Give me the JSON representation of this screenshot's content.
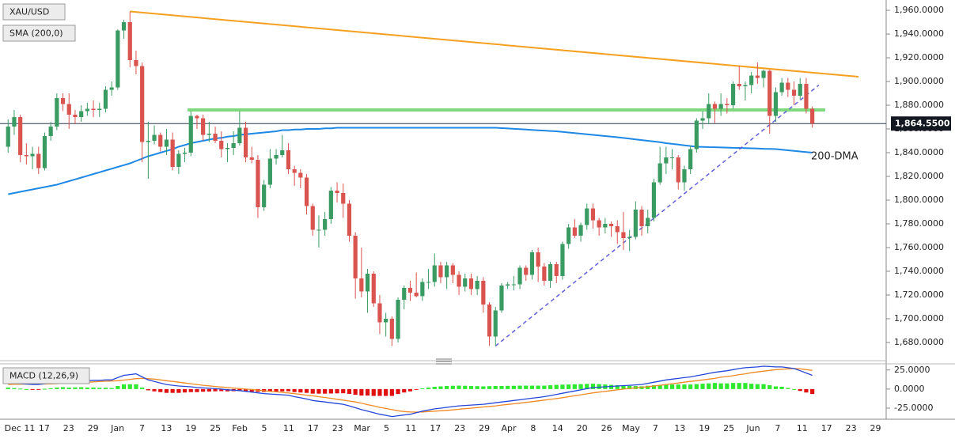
{
  "chart_data": [
    {
      "type": "candlestick",
      "title": "XAU/USD",
      "indicator_label": "SMA (200,0)",
      "up_color": "#3a9b62",
      "down_color": "#d9534f",
      "open": [
        1845,
        1862,
        1870,
        1838,
        1837,
        1839,
        1827,
        1854,
        1862,
        1886,
        1881,
        1872,
        1870,
        1875,
        1877,
        1876,
        1877,
        1893,
        1895,
        1943,
        1950,
        1918,
        1913,
        1849,
        1850,
        1855,
        1845,
        1851,
        1828,
        1839,
        1840,
        1871,
        1869,
        1855,
        1856,
        1850,
        1843,
        1844,
        1848,
        1861,
        1836,
        1834,
        1794,
        1813,
        1835,
        1838,
        1842,
        1826,
        1823,
        1819,
        1795,
        1775,
        1775,
        1784,
        1808,
        1806,
        1797,
        1770,
        1734,
        1723,
        1738,
        1713,
        1697,
        1700,
        1683,
        1716,
        1726,
        1722,
        1719,
        1731,
        1731,
        1745,
        1735,
        1745,
        1737,
        1727,
        1734,
        1725,
        1732,
        1712,
        1685,
        1707,
        1728,
        1729,
        1729,
        1743,
        1737,
        1756,
        1744,
        1732,
        1746,
        1736,
        1763,
        1777,
        1770,
        1779,
        1793,
        1783,
        1777,
        1780,
        1778,
        1773,
        1768,
        1769,
        1792,
        1778,
        1785,
        1815,
        1831,
        1836,
        1836,
        1815,
        1826,
        1843,
        1867,
        1869,
        1881,
        1877,
        1881,
        1880,
        1898,
        1896,
        1897,
        1905,
        1903,
        1909,
        1871,
        1891,
        1899,
        1893,
        1888,
        1898,
        1877
      ],
      "high": [
        1868,
        1876,
        1872,
        1848,
        1845,
        1845,
        1857,
        1866,
        1890,
        1890,
        1890,
        1876,
        1880,
        1882,
        1884,
        1882,
        1896,
        1900,
        1944,
        1952,
        1959,
        1926,
        1916,
        1866,
        1863,
        1857,
        1860,
        1857,
        1842,
        1844,
        1875,
        1872,
        1872,
        1866,
        1862,
        1858,
        1848,
        1858,
        1875,
        1866,
        1845,
        1838,
        1817,
        1843,
        1843,
        1855,
        1848,
        1829,
        1826,
        1822,
        1797,
        1787,
        1790,
        1811,
        1815,
        1814,
        1800,
        1773,
        1760,
        1742,
        1740,
        1720,
        1705,
        1702,
        1718,
        1728,
        1732,
        1739,
        1734,
        1742,
        1755,
        1748,
        1748,
        1747,
        1740,
        1738,
        1738,
        1736,
        1735,
        1714,
        1710,
        1730,
        1731,
        1736,
        1745,
        1745,
        1758,
        1760,
        1747,
        1748,
        1748,
        1765,
        1780,
        1784,
        1781,
        1797,
        1797,
        1785,
        1785,
        1782,
        1783,
        1790,
        1775,
        1799,
        1795,
        1792,
        1818,
        1845,
        1845,
        1843,
        1838,
        1829,
        1846,
        1869,
        1875,
        1890,
        1883,
        1890,
        1886,
        1900,
        1913,
        1900,
        1908,
        1916,
        1910,
        1910,
        1895,
        1903,
        1903,
        1900,
        1903,
        1903,
        1879
      ],
      "low": [
        1840,
        1855,
        1832,
        1830,
        1826,
        1822,
        1825,
        1850,
        1859,
        1875,
        1860,
        1864,
        1866,
        1871,
        1870,
        1870,
        1874,
        1888,
        1893,
        1936,
        1912,
        1906,
        1832,
        1818,
        1847,
        1841,
        1838,
        1825,
        1822,
        1832,
        1837,
        1860,
        1850,
        1849,
        1848,
        1836,
        1832,
        1838,
        1846,
        1832,
        1831,
        1785,
        1791,
        1810,
        1830,
        1836,
        1822,
        1812,
        1810,
        1788,
        1770,
        1760,
        1770,
        1780,
        1798,
        1785,
        1765,
        1717,
        1718,
        1705,
        1710,
        1687,
        1685,
        1677,
        1680,
        1708,
        1715,
        1718,
        1715,
        1725,
        1727,
        1730,
        1725,
        1730,
        1720,
        1723,
        1720,
        1720,
        1705,
        1677,
        1677,
        1705,
        1725,
        1724,
        1725,
        1732,
        1733,
        1731,
        1728,
        1726,
        1730,
        1733,
        1759,
        1768,
        1765,
        1775,
        1776,
        1770,
        1772,
        1769,
        1763,
        1758,
        1757,
        1767,
        1770,
        1772,
        1782,
        1813,
        1822,
        1826,
        1809,
        1808,
        1822,
        1840,
        1860,
        1864,
        1865,
        1871,
        1873,
        1877,
        1893,
        1884,
        1890,
        1898,
        1895,
        1856,
        1866,
        1888,
        1887,
        1880,
        1885,
        1873,
        1861
      ],
      "close": [
        1862,
        1870,
        1838,
        1837,
        1839,
        1827,
        1854,
        1862,
        1886,
        1881,
        1872,
        1870,
        1875,
        1877,
        1876,
        1877,
        1893,
        1895,
        1943,
        1950,
        1918,
        1913,
        1849,
        1850,
        1855,
        1845,
        1851,
        1828,
        1839,
        1840,
        1871,
        1869,
        1855,
        1856,
        1850,
        1843,
        1844,
        1848,
        1861,
        1836,
        1834,
        1794,
        1813,
        1835,
        1838,
        1842,
        1826,
        1823,
        1819,
        1795,
        1775,
        1775,
        1784,
        1808,
        1806,
        1797,
        1770,
        1734,
        1723,
        1738,
        1713,
        1697,
        1700,
        1683,
        1716,
        1726,
        1722,
        1719,
        1731,
        1731,
        1745,
        1735,
        1745,
        1737,
        1727,
        1734,
        1725,
        1732,
        1712,
        1685,
        1707,
        1728,
        1729,
        1729,
        1743,
        1737,
        1756,
        1744,
        1732,
        1746,
        1736,
        1763,
        1777,
        1770,
        1779,
        1793,
        1783,
        1777,
        1780,
        1778,
        1773,
        1768,
        1769,
        1792,
        1778,
        1785,
        1815,
        1831,
        1836,
        1836,
        1815,
        1826,
        1843,
        1867,
        1869,
        1881,
        1877,
        1881,
        1880,
        1898,
        1896,
        1897,
        1905,
        1903,
        1909,
        1871,
        1891,
        1899,
        1893,
        1888,
        1898,
        1877,
        1864.55
      ],
      "sma": {
        "name": "200-DMA",
        "color": "#1e88e5",
        "values": [
          1805,
          1806,
          1807,
          1808,
          1809,
          1810,
          1811,
          1812,
          1813,
          1814.5,
          1816,
          1817.5,
          1819,
          1820.5,
          1822,
          1823.5,
          1825,
          1826.5,
          1828,
          1829.5,
          1831,
          1833,
          1835,
          1837,
          1838.5,
          1840,
          1841.5,
          1843,
          1845,
          1846.5,
          1848,
          1849,
          1850,
          1851,
          1852,
          1852.5,
          1853.5,
          1854,
          1855,
          1855.5,
          1856,
          1856.5,
          1857,
          1857.5,
          1858,
          1859,
          1859,
          1859.5,
          1859.5,
          1860,
          1860,
          1860,
          1860.5,
          1860.5,
          1861,
          1861,
          1861,
          1861,
          1861,
          1861,
          1861,
          1861,
          1861,
          1861,
          1861,
          1861,
          1861,
          1861,
          1861,
          1861,
          1861,
          1861,
          1861,
          1861,
          1861,
          1861,
          1861,
          1861,
          1861,
          1861,
          1861,
          1860.7,
          1860.4,
          1860.1,
          1859.8,
          1859.5,
          1859.2,
          1858.9,
          1858.6,
          1858.3,
          1858,
          1857.5,
          1857,
          1856.5,
          1856,
          1855.5,
          1855,
          1854.5,
          1854,
          1853.5,
          1853,
          1852.4,
          1851.8,
          1851.2,
          1850.6,
          1850,
          1849.4,
          1848.8,
          1848,
          1847.4,
          1846.8,
          1846.2,
          1845.6,
          1845,
          1844.9,
          1844.7,
          1844.6,
          1844.4,
          1844.3,
          1844.1,
          1844,
          1843.8,
          1843.7,
          1843.5,
          1843.3,
          1843.2,
          1843,
          1842.5,
          1842,
          1841.5,
          1841,
          1840.5,
          1840
        ]
      },
      "trend_lines": [
        {
          "color": "#f5a020",
          "dashed": false,
          "values": [
            1959,
            1904
          ]
        },
        {
          "color": "#7fd97f",
          "dashed": false,
          "values": [
            1876,
            1876
          ]
        },
        {
          "color": "#6060d8",
          "dashed": true,
          "values": [
            1677,
            1897
          ]
        }
      ],
      "last_price": {
        "value": 1864.55,
        "label": "1,864.5500"
      },
      "ylim": [
        1665.3,
        1968.7
      ],
      "yticks": [
        {
          "value": 1960,
          "label": "1,960.0000"
        },
        {
          "value": 1940,
          "label": "1,940.0000"
        },
        {
          "value": 1920,
          "label": "1,920.0000"
        },
        {
          "value": 1900,
          "label": "1,900.0000"
        },
        {
          "value": 1880,
          "label": "1,880.0000"
        },
        {
          "value": 1860,
          "label": "1,860.0000"
        },
        {
          "value": 1840,
          "label": "1,840.0000"
        },
        {
          "value": 1820,
          "label": "1,820.0000"
        },
        {
          "value": 1800,
          "label": "1,800.0000"
        },
        {
          "value": 1780,
          "label": "1,780.0000"
        },
        {
          "value": 1760,
          "label": "1,760.0000"
        },
        {
          "value": 1740,
          "label": "1,740.0000"
        },
        {
          "value": 1720,
          "label": "1,720.0000"
        },
        {
          "value": 1700,
          "label": "1,700.0000"
        },
        {
          "value": 1680,
          "label": "1,680.0000"
        }
      ]
    },
    {
      "type": "macd",
      "title": "MACD (12,26,9)",
      "macd": {
        "color": "#2547d8",
        "values": [
          8,
          7.5,
          7,
          6.5,
          6,
          6,
          7,
          8,
          9,
          10,
          10,
          10.5,
          11,
          11,
          11.5,
          11.5,
          12,
          12,
          15,
          18,
          19,
          20,
          16,
          12,
          10,
          8,
          6,
          5,
          4,
          3.5,
          3,
          2,
          1.5,
          1,
          0.5,
          0,
          -1,
          -1.5,
          -2,
          -3,
          -4,
          -5,
          -6,
          -6.5,
          -7,
          -7.5,
          -8,
          -10,
          -11.5,
          -13,
          -15,
          -16,
          -17,
          -18,
          -19,
          -20,
          -22,
          -24.5,
          -27,
          -29,
          -31,
          -33,
          -34.5,
          -36,
          -35,
          -34,
          -33,
          -31,
          -29,
          -27.5,
          -26,
          -25,
          -24,
          -23,
          -22,
          -21.5,
          -21,
          -20.5,
          -20,
          -19,
          -18,
          -17,
          -16,
          -15,
          -14,
          -13,
          -12,
          -11,
          -10,
          -8.5,
          -7,
          -5.5,
          -4,
          -2.5,
          -1,
          0.5,
          2,
          2.5,
          3,
          3.5,
          4,
          4.5,
          5,
          5.5,
          6,
          7.5,
          9,
          10.5,
          12,
          13,
          14,
          15,
          16,
          17.5,
          19,
          20.5,
          22,
          23,
          24,
          25.5,
          27,
          28,
          28.5,
          29,
          30,
          29.5,
          29,
          29,
          28,
          27,
          24,
          21,
          18
        ]
      },
      "signal": {
        "color": "#f08a24",
        "values": [
          6,
          6.2,
          6.4,
          6.5,
          6.5,
          6.5,
          6.6,
          6.8,
          7,
          7.5,
          8,
          8.3,
          8.6,
          9,
          9.4,
          9.8,
          10.2,
          10.6,
          11,
          11.8,
          12.7,
          13.7,
          14,
          13.6,
          13,
          12,
          11,
          10,
          9,
          8,
          7,
          6,
          5,
          4.2,
          3.4,
          2.7,
          2,
          1.3,
          0.6,
          0,
          -0.7,
          -1.4,
          -2.2,
          -3,
          -3.7,
          -4.4,
          -5.1,
          -6,
          -7,
          -8,
          -9,
          -10,
          -11,
          -12.2,
          -13.4,
          -14.5,
          -15.7,
          -17,
          -18.5,
          -20.5,
          -22,
          -24,
          -25.5,
          -27,
          -28.5,
          -29.5,
          -30,
          -30.2,
          -30,
          -29.5,
          -29,
          -28.5,
          -28,
          -27.3,
          -26.5,
          -25.8,
          -25,
          -24.3,
          -23.5,
          -22.8,
          -22,
          -21,
          -20.2,
          -19.3,
          -18.5,
          -17.5,
          -16.5,
          -15.5,
          -14.5,
          -13.5,
          -12.5,
          -11.3,
          -10,
          -8.8,
          -7.5,
          -6.3,
          -5,
          -4,
          -3,
          -2,
          -1,
          0,
          0.8,
          1.6,
          2.4,
          3.2,
          4,
          5,
          6,
          7,
          8,
          9,
          10,
          11,
          12,
          13,
          14,
          15.5,
          16.5,
          17.5,
          19,
          20,
          21.5,
          22.5,
          23.5,
          24.5,
          25.5,
          26,
          26.5,
          27,
          26.5,
          25.5,
          24.5
        ]
      },
      "histogram": {
        "up_color": "#2ee82e",
        "down_color": "#e01010",
        "values": [
          2,
          1.3,
          0.6,
          0,
          -0.5,
          -0.5,
          0.4,
          1.2,
          2,
          2.5,
          2,
          2.2,
          2.4,
          2,
          2.1,
          1.7,
          1.8,
          1.4,
          4,
          6.2,
          6.3,
          6.3,
          2,
          -1.6,
          -3,
          -4,
          -5,
          -5,
          -5,
          -4.5,
          -4,
          -4,
          -3.5,
          -3.2,
          -2.9,
          -2.7,
          -3,
          -2.8,
          -2.6,
          -3,
          -3.3,
          -3.6,
          -3.8,
          -3.5,
          -3.3,
          -3.1,
          -2.9,
          -4,
          -4.5,
          -5,
          -6,
          -6,
          -6,
          -5.8,
          -5.6,
          -5.5,
          -6.3,
          -7.5,
          -8.5,
          -8.5,
          -9,
          -9,
          -9,
          -9,
          -6.5,
          -4.5,
          -3,
          -0.8,
          1,
          2,
          3,
          3.5,
          4,
          4.3,
          4.5,
          4.3,
          4,
          3.8,
          3.5,
          3.8,
          4,
          4,
          4.2,
          4.3,
          4.5,
          4.5,
          4.5,
          4.5,
          4.5,
          5,
          5.5,
          5.8,
          6,
          6.3,
          6.5,
          6.8,
          7,
          6.5,
          6,
          5.5,
          5,
          4.5,
          4.2,
          3.9,
          3.6,
          4.3,
          5,
          5.5,
          6,
          6,
          6,
          6,
          6,
          6.5,
          7,
          7.5,
          8,
          7.5,
          7.5,
          8,
          8,
          8,
          7,
          6.5,
          6.5,
          5,
          3.5,
          3,
          1.5,
          0,
          -2.5,
          -4.5,
          -6.5
        ]
      },
      "ylim": [
        -37.5,
        31
      ],
      "yticks": [
        {
          "value": 25,
          "label": "25.0000"
        },
        {
          "value": 0,
          "label": "0.0000"
        },
        {
          "value": -25,
          "label": "-25.0000"
        }
      ],
      "xtick_labels": [
        "Dec 11",
        "17",
        "23",
        "29",
        "Jan",
        "7",
        "13",
        "19",
        "25",
        "Feb",
        "5",
        "11",
        "17",
        "23",
        "Mar",
        "5",
        "11",
        "17",
        "23",
        "29",
        "Apr",
        "8",
        "14",
        "20",
        "26",
        "May",
        "7",
        "13",
        "19",
        "25",
        "Jun",
        "7",
        "11",
        "17",
        "23",
        "29"
      ]
    }
  ]
}
